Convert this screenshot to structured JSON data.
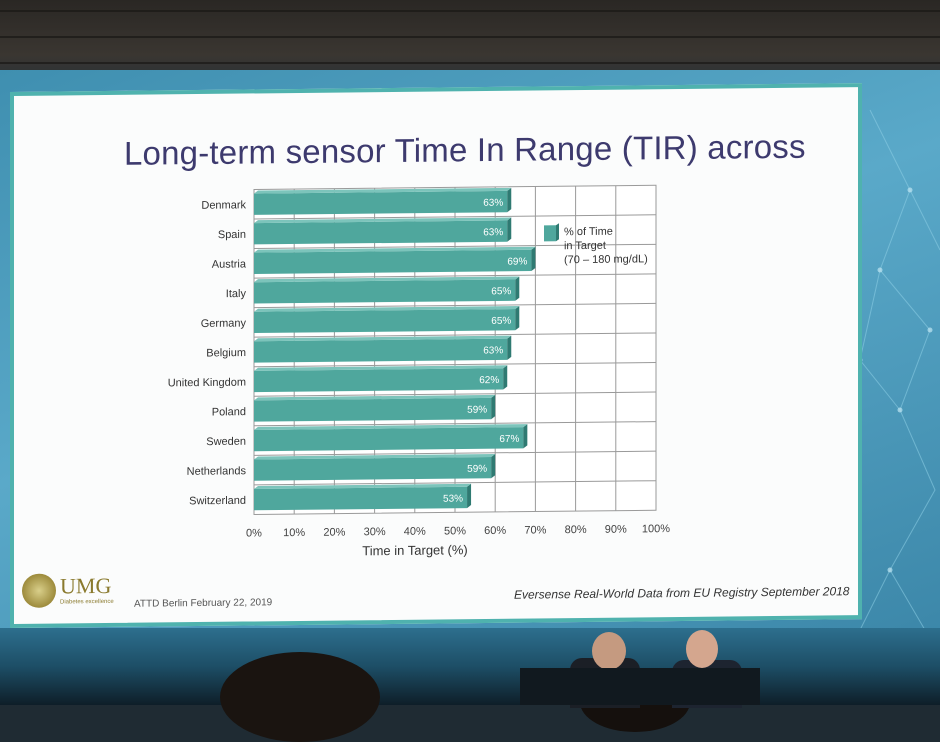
{
  "slide": {
    "title": "Long-term sensor Time In Range (TIR) across",
    "footer_left": "ATTD Berlin February 22, 2019",
    "footer_right": "Eversense Real-World Data from EU Registry September 2018",
    "logo_text": "UMG",
    "logo_subtext": "Diabetes excellence"
  },
  "chart_data": {
    "type": "bar",
    "orientation": "horizontal",
    "categories": [
      "Denmark",
      "Spain",
      "Austria",
      "Italy",
      "Germany",
      "Belgium",
      "United Kingdom",
      "Poland",
      "Sweden",
      "Netherlands",
      "Switzerland"
    ],
    "values": [
      63,
      63,
      69,
      65,
      65,
      63,
      62,
      59,
      67,
      59,
      53
    ],
    "data_labels": [
      "63%",
      "63%",
      "69%",
      "65%",
      "65%",
      "63%",
      "62%",
      "59%",
      "67%",
      "59%",
      "53%"
    ],
    "xlabel": "Time in Target (%)",
    "xlim": [
      0,
      100
    ],
    "xticks": [
      "0%",
      "10%",
      "20%",
      "30%",
      "40%",
      "50%",
      "60%",
      "70%",
      "80%",
      "90%",
      "100%"
    ],
    "grid": true,
    "legend": {
      "placement": "right",
      "lines": [
        "% of Time",
        "in Target",
        "(70 – 180 mg/dL)"
      ]
    },
    "bar_color": "#4fa79d"
  }
}
